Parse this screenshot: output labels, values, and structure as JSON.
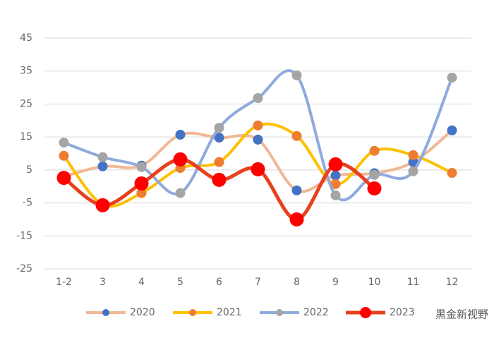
{
  "chart_data": {
    "type": "line",
    "categories": [
      "1-2",
      "3",
      "4",
      "5",
      "6",
      "7",
      "8",
      "9",
      "10",
      "11",
      "12"
    ],
    "series": [
      {
        "name": "2020",
        "color": "#f0b896",
        "marker_color": "#4472c4",
        "values": [
          3,
          6.1,
          6.3,
          15.7,
          14.8,
          14.2,
          -1.2,
          3.3,
          4,
          7.4,
          17
        ]
      },
      {
        "name": "2021",
        "color": "#ffc000",
        "marker_color": "#ed7d31",
        "values": [
          9.3,
          -5.5,
          -2,
          5.6,
          7.4,
          18.5,
          15.3,
          0.7,
          10.8,
          9.5,
          4.1
        ]
      },
      {
        "name": "2022",
        "color": "#8faadc",
        "marker_color": "#a5a5a5",
        "values": [
          13.3,
          8.9,
          5.9,
          -2,
          17.8,
          26.8,
          33.7,
          -2.7,
          3.5,
          4.6,
          33
        ]
      },
      {
        "name": "2023",
        "color": "#e8401c",
        "marker_color": "#ff0000",
        "values": [
          2.6,
          -5.7,
          0.9,
          8.2,
          2,
          5.2,
          -10,
          6.7,
          -0.6,
          null,
          null
        ]
      }
    ],
    "ylim": [
      -25,
      45
    ],
    "yticks": [
      -25,
      -15,
      -5,
      5,
      15,
      25,
      35,
      45
    ],
    "grid": true,
    "legend": "bottom",
    "watermark": "黑金新视野"
  }
}
